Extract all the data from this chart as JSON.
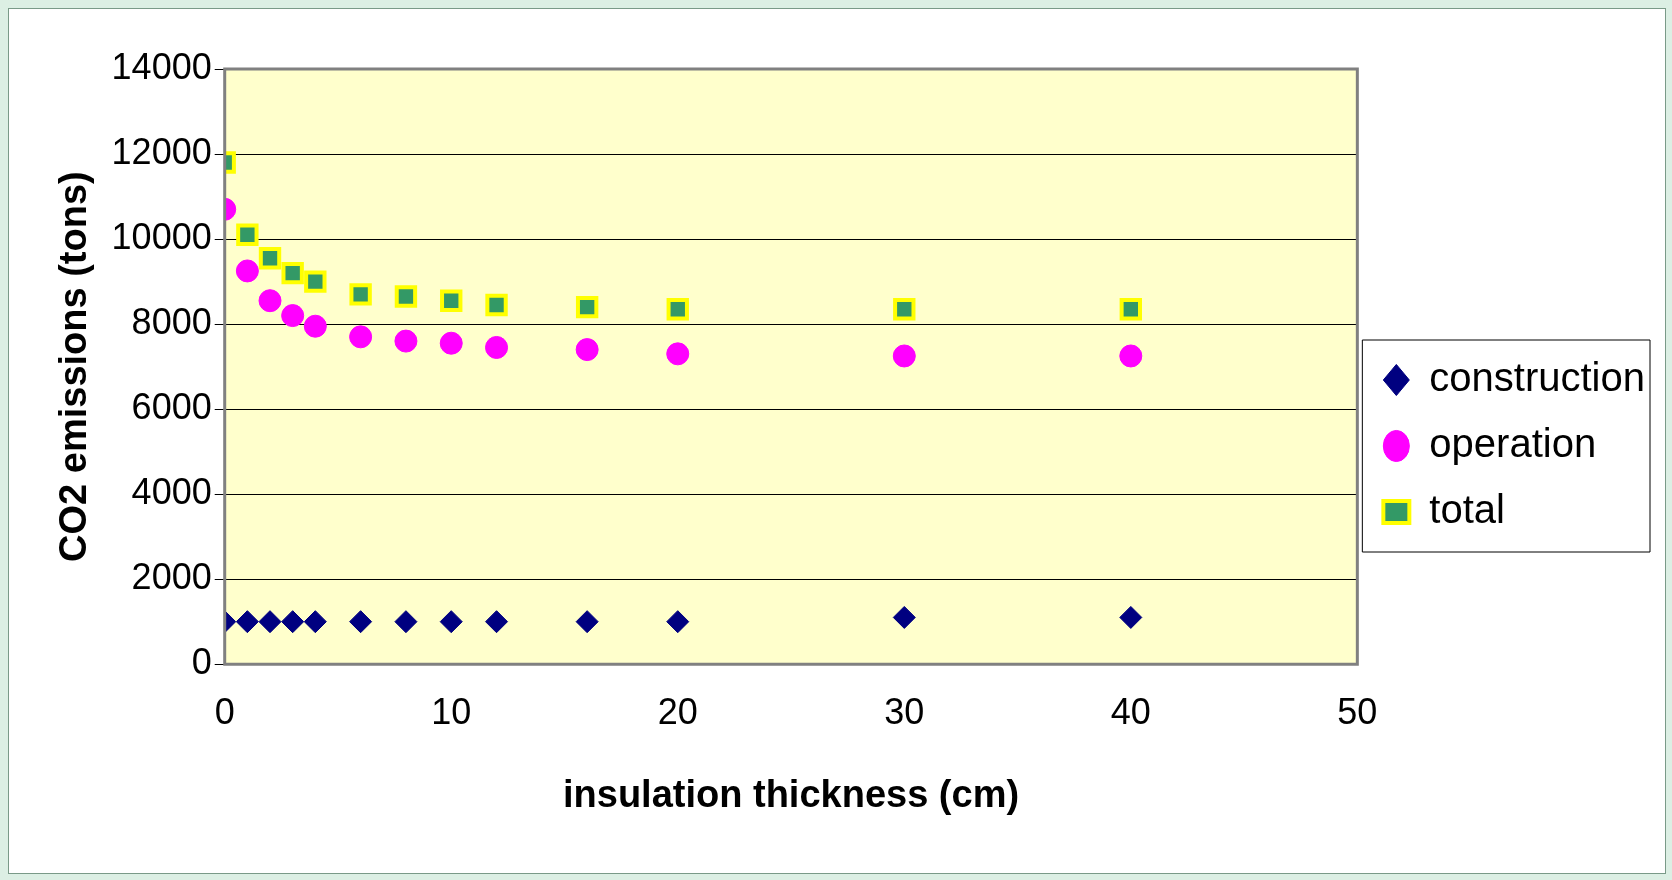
{
  "chart_data": {
    "type": "scatter",
    "xlabel": "insulation thickness (cm)",
    "ylabel": "CO2 emissions (tons)",
    "x": [
      0,
      1,
      2,
      3,
      4,
      6,
      8,
      10,
      12,
      16,
      20,
      30,
      40
    ],
    "series": [
      {
        "name": "construction",
        "color": "#000080",
        "marker": "diamond",
        "values": [
          1000,
          1000,
          1000,
          1000,
          1000,
          1000,
          1000,
          1000,
          1000,
          1000,
          1000,
          1100,
          1100
        ]
      },
      {
        "name": "operation",
        "color": "#ff00ff",
        "marker": "circle",
        "values": [
          10700,
          9250,
          8550,
          8200,
          7950,
          7700,
          7600,
          7550,
          7450,
          7400,
          7300,
          7250,
          7250
        ]
      },
      {
        "name": "total",
        "color": "#339966",
        "marker": "square",
        "values": [
          11800,
          10100,
          9550,
          9200,
          9000,
          8700,
          8650,
          8550,
          8450,
          8400,
          8350,
          8350,
          8350
        ]
      }
    ],
    "xlim": [
      0,
      50
    ],
    "xticks": [
      0,
      10,
      20,
      30,
      40,
      50
    ],
    "ylim": [
      0,
      14000
    ],
    "yticks": [
      0,
      2000,
      4000,
      6000,
      8000,
      10000,
      12000,
      14000
    ],
    "grid": "y",
    "legend": "right"
  }
}
